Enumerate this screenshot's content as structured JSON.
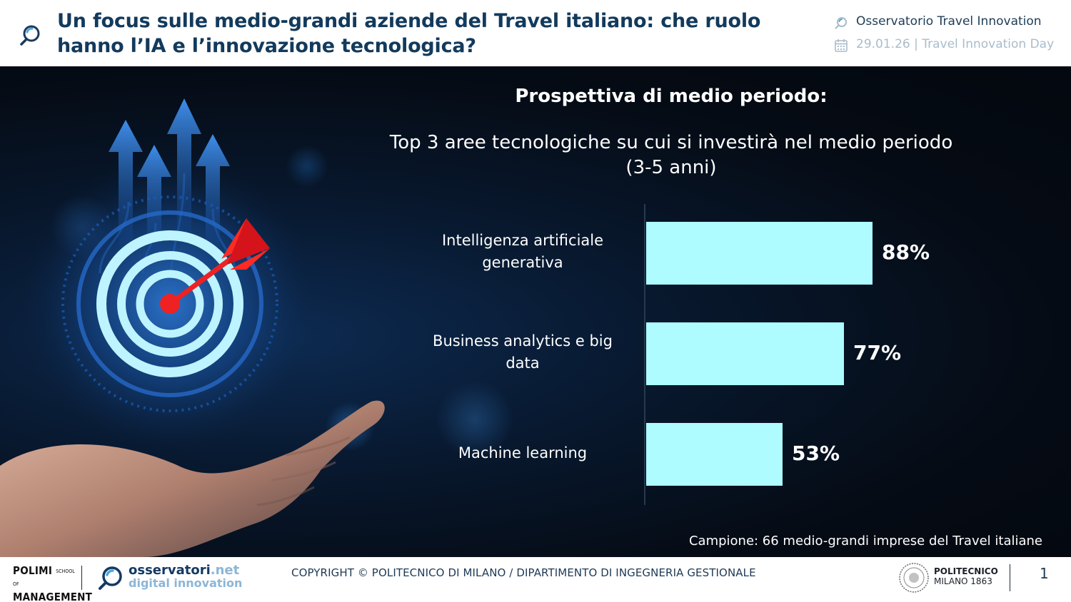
{
  "header": {
    "title_line1": "Un focus sulle medio-grandi aziende del Travel italiano: che ruolo",
    "title_line2": "hanno l’IA e l’innovazione tecnologica?",
    "observatory": "Osservatorio Travel Innovation",
    "date_event": "29.01.26 | Travel Innovation Day"
  },
  "slide": {
    "subtitle": "Prospettiva di medio periodo:",
    "source": "Campione: 66 medio-grandi imprese del Travel italiane"
  },
  "chart_data": {
    "type": "bar",
    "orientation": "horizontal",
    "title_line1": "Top 3 aree tecnologiche su cui si investirà nel medio periodo",
    "title_line2": "(3-5 anni)",
    "categories": [
      [
        "Intelligenza artificiale",
        "generativa"
      ],
      [
        "Business analytics e big",
        "data"
      ],
      [
        "Machine learning"
      ]
    ],
    "values": [
      88,
      77,
      53
    ],
    "value_labels": [
      "88%",
      "77%",
      "53%"
    ],
    "xlim": [
      0,
      100
    ],
    "bar_color": "#aefcff",
    "grid": false,
    "legend": "none"
  },
  "footer": {
    "polimi_line1": "POLIMI",
    "polimi_small_a": "SCHOOL",
    "polimi_small_b": "OF",
    "polimi_line2": "MANAGEMENT",
    "osservatori_a": "osservatori",
    "osservatori_b": ".net",
    "osservatori_sub": "digital innovation",
    "copyright": "COPYRIGHT © POLITECNICO DI MILANO / DIPARTIMENTO DI INGEGNERIA GESTIONALE",
    "politecnico_line1": "POLITECNICO",
    "politecnico_line2": "MILANO 1863",
    "page_number": "1"
  },
  "colors": {
    "title_blue": "#123a5c",
    "date_gray": "#a9bccb",
    "bar": "#aefcff",
    "panel_bg": "#050b14"
  },
  "icons": [
    "osservatori-magnifier-icon",
    "calendar-icon",
    "politecnico-seal-icon"
  ]
}
